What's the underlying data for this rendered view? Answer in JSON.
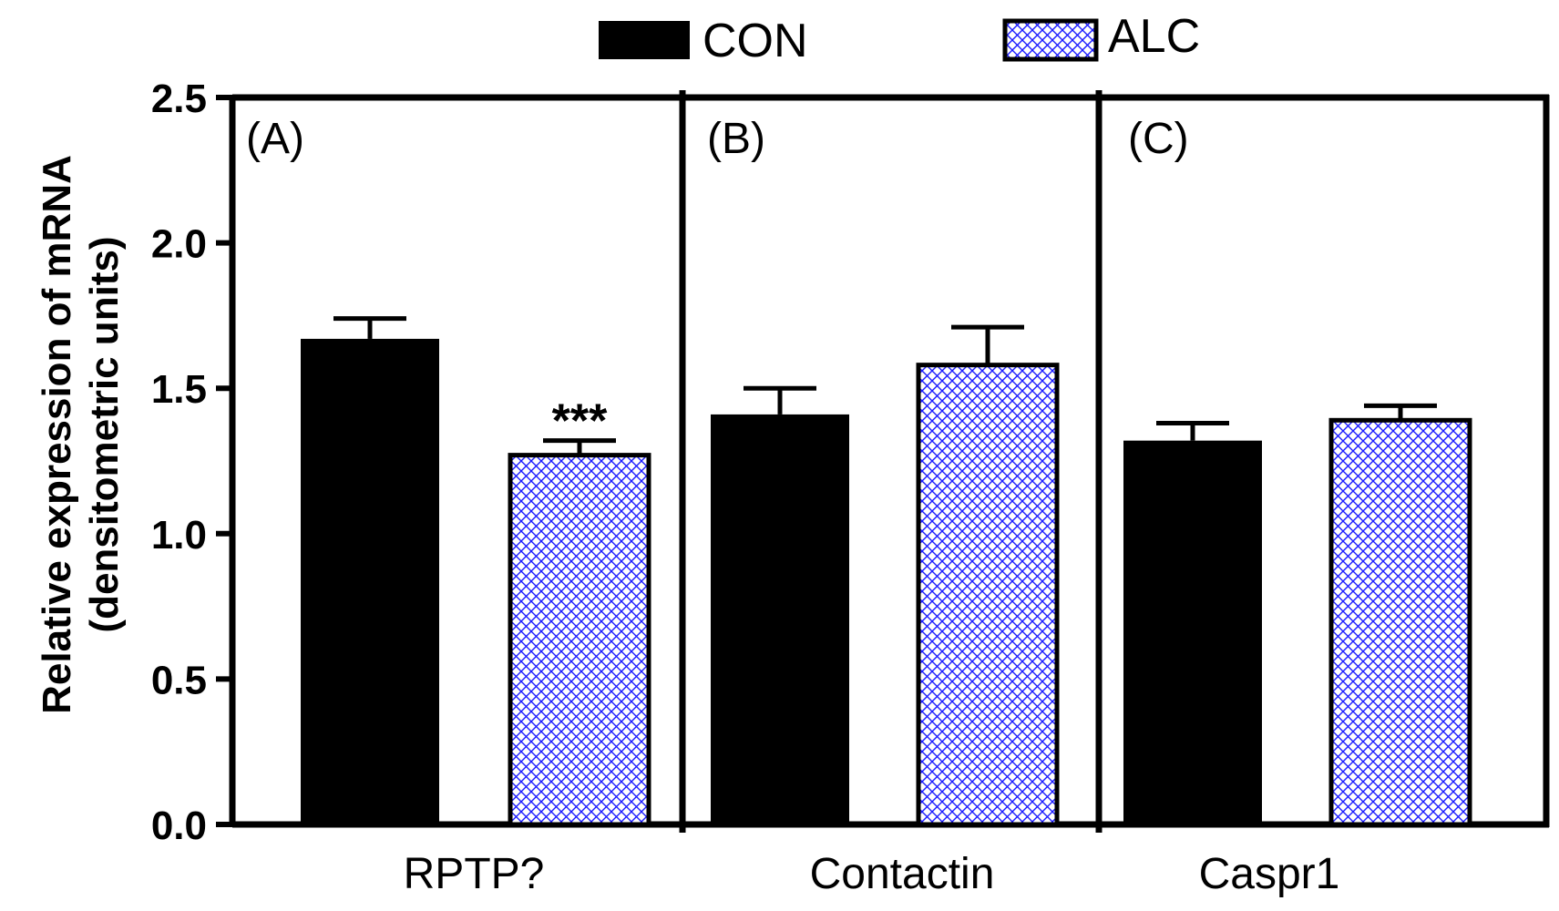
{
  "chart_data": {
    "type": "bar",
    "ylabel_line1": "Relative expression of  mRNA",
    "ylabel_line2": "(densitometric units)",
    "ylim": [
      0,
      2.5
    ],
    "yticks": [
      0.0,
      0.5,
      1.0,
      1.5,
      2.0,
      2.5
    ],
    "ytick_labels": [
      "0.0",
      "0.5",
      "1.0",
      "1.5",
      "2.0",
      "2.5"
    ],
    "legend": {
      "position": "top-center",
      "entries": [
        {
          "name": "CON",
          "style": "solid"
        },
        {
          "name": "ALC",
          "style": "crosshatch"
        }
      ]
    },
    "panels": [
      {
        "label": "(A)",
        "category": "RPTP?",
        "bars": [
          {
            "series": "CON",
            "value": 1.67,
            "error": 0.07
          },
          {
            "series": "ALC",
            "value": 1.27,
            "error": 0.05,
            "annotation": "***"
          }
        ]
      },
      {
        "label": "(B)",
        "category": "Contactin",
        "bars": [
          {
            "series": "CON",
            "value": 1.41,
            "error": 0.09
          },
          {
            "series": "ALC",
            "value": 1.58,
            "error": 0.13
          }
        ]
      },
      {
        "label": "(C)",
        "category": "Caspr1",
        "bars": [
          {
            "series": "CON",
            "value": 1.32,
            "error": 0.06
          },
          {
            "series": "ALC",
            "value": 1.39,
            "error": 0.05
          }
        ]
      }
    ],
    "colors": {
      "con_fill": "#000000",
      "alc_hatch": "#1a1aff",
      "axis": "#000000"
    }
  }
}
